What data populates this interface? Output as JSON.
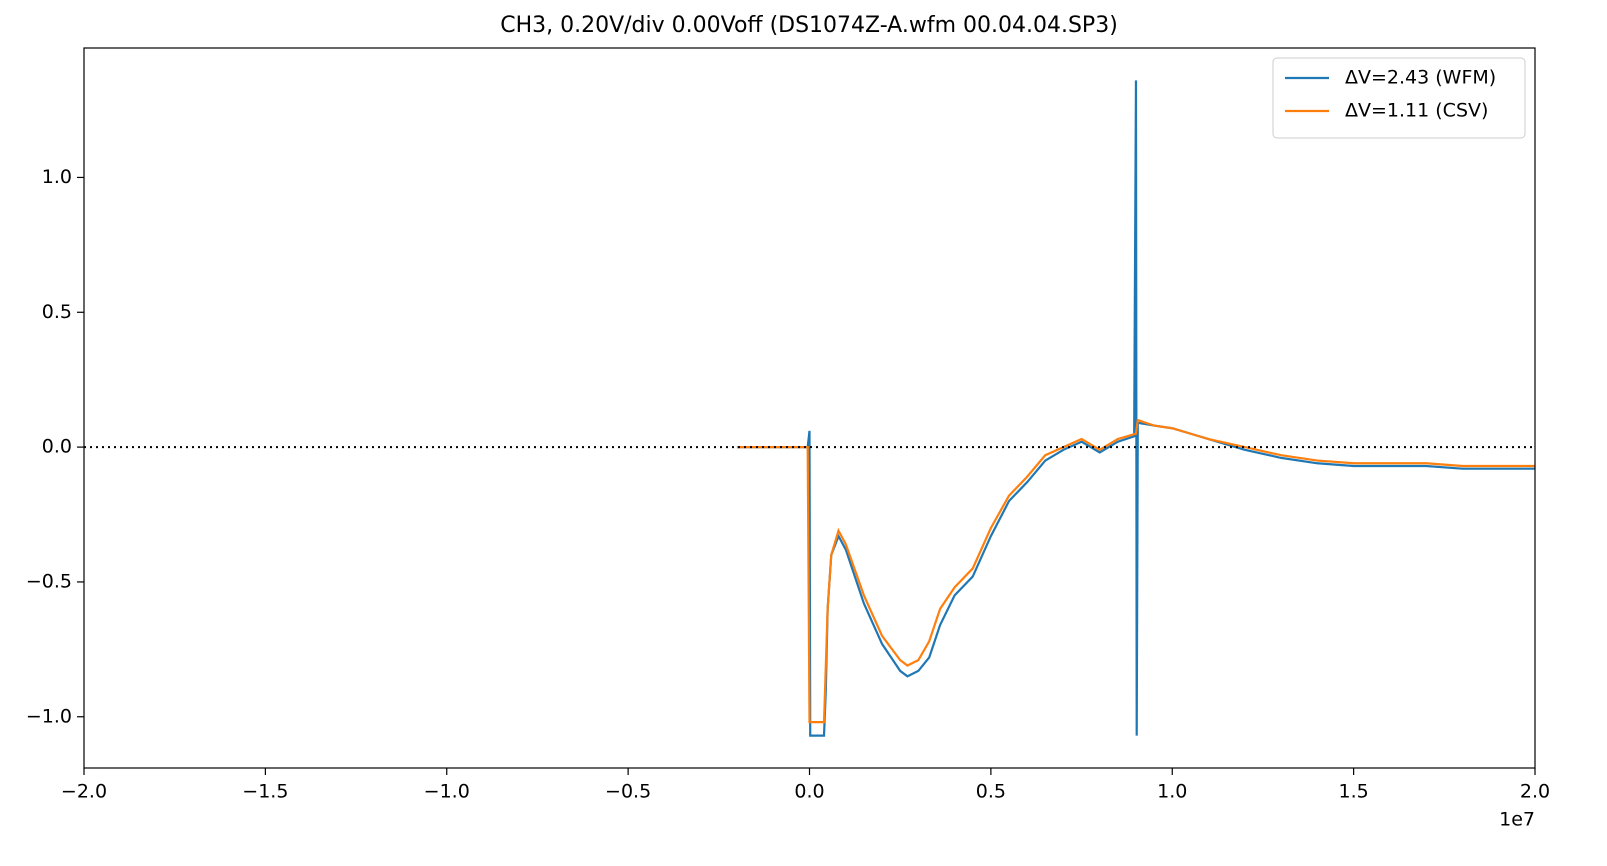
{
  "chart_data": {
    "type": "line",
    "title": "CH3, 0.20V/div 0.00Voff (DS1074Z-A.wfm 00.04.04.SP3)",
    "x_offset_label": "1e7",
    "xlim": [
      -2.0,
      2.0
    ],
    "xticks": [
      {
        "value": -2.0,
        "label": "−2.0"
      },
      {
        "value": -1.5,
        "label": "−1.5"
      },
      {
        "value": -1.0,
        "label": "−1.0"
      },
      {
        "value": -0.5,
        "label": "−0.5"
      },
      {
        "value": 0,
        "label": "0.0"
      },
      0.5,
      {
        "value": 1.0,
        "label": "1.0"
      },
      1.5,
      {
        "value": 2.0,
        "label": "2.0"
      }
    ],
    "ylim": [
      -1.19,
      1.48
    ],
    "yticks": [
      {
        "value": -1.0,
        "label": "−1.0"
      },
      {
        "value": -0.5,
        "label": "−0.5"
      },
      {
        "value": 0,
        "label": "0.0"
      },
      0.5,
      {
        "value": 1.0,
        "label": "1.0"
      }
    ],
    "hline": 0,
    "legend": "upper right",
    "series": [
      {
        "name": "ΔV=2.43 (WFM)",
        "color": "#1f77b4",
        "x": [
          -0.2,
          -0.1,
          -0.005,
          0.0,
          0.002,
          0.04,
          0.045,
          0.05,
          0.06,
          0.08,
          0.1,
          0.15,
          0.2,
          0.25,
          0.27,
          0.3,
          0.33,
          0.36,
          0.4,
          0.45,
          0.5,
          0.55,
          0.6,
          0.65,
          0.7,
          0.75,
          0.8,
          0.85,
          0.895,
          0.9,
          0.902,
          0.905,
          0.95,
          1.0,
          1.05,
          1.1,
          1.2,
          1.3,
          1.4,
          1.5,
          1.6,
          1.7,
          1.8,
          1.9,
          2.0
        ],
        "values": [
          0,
          0,
          0,
          0.06,
          -1.07,
          -1.07,
          -0.9,
          -0.6,
          -0.4,
          -0.33,
          -0.38,
          -0.58,
          -0.73,
          -0.83,
          -0.85,
          -0.83,
          -0.78,
          -0.66,
          -0.55,
          -0.48,
          -0.33,
          -0.2,
          -0.13,
          -0.05,
          -0.01,
          0.02,
          -0.02,
          0.02,
          0.04,
          1.36,
          -1.07,
          0.09,
          0.08,
          0.07,
          0.05,
          0.03,
          -0.01,
          -0.04,
          -0.06,
          -0.07,
          -0.07,
          -0.07,
          -0.08,
          -0.08,
          -0.08
        ]
      },
      {
        "name": "ΔV=1.11 (CSV)",
        "color": "#ff7f0e",
        "x": [
          -0.2,
          -0.005,
          0.0,
          0.04,
          0.05,
          0.06,
          0.08,
          0.1,
          0.15,
          0.2,
          0.25,
          0.27,
          0.3,
          0.33,
          0.36,
          0.4,
          0.45,
          0.5,
          0.55,
          0.6,
          0.65,
          0.7,
          0.75,
          0.8,
          0.85,
          0.9,
          0.905,
          0.95,
          1.0,
          1.05,
          1.1,
          1.2,
          1.3,
          1.4,
          1.5,
          1.6,
          1.7,
          1.8,
          1.9,
          2.0
        ],
        "values": [
          0,
          0,
          -1.02,
          -1.02,
          -0.6,
          -0.4,
          -0.31,
          -0.36,
          -0.55,
          -0.7,
          -0.79,
          -0.81,
          -0.79,
          -0.72,
          -0.6,
          -0.52,
          -0.45,
          -0.3,
          -0.18,
          -0.11,
          -0.03,
          0.0,
          0.03,
          -0.01,
          0.03,
          0.05,
          0.1,
          0.08,
          0.07,
          0.05,
          0.03,
          0.0,
          -0.03,
          -0.05,
          -0.06,
          -0.06,
          -0.06,
          -0.07,
          -0.07,
          -0.07
        ]
      }
    ]
  }
}
